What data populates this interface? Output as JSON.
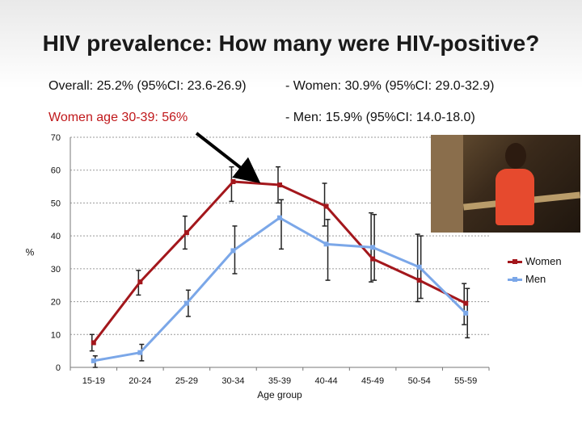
{
  "title": "HIV prevalence: How many were HIV-positive?",
  "stats": {
    "overall": "Overall: 25.2% (95%CI: 23.6-26.9)",
    "women": "-   Women: 30.9% (95%CI: 29.0-32.9)",
    "women_30_39": "Women age 30-39: 56%",
    "men": "-   Men:   15.9% (95%CI: 14.0-18.0)"
  },
  "colors": {
    "women": "#a3171c",
    "men": "#7ba7e8",
    "highlight": "#c0181b"
  },
  "chart_data": {
    "type": "line",
    "xlabel": "Age group",
    "ylabel": "%",
    "ylim": [
      0,
      70
    ],
    "yticks": [
      0,
      10,
      20,
      30,
      40,
      50,
      60,
      70
    ],
    "grid": true,
    "legend_position": "right",
    "categories": [
      "15-19",
      "20-24",
      "25-29",
      "30-34",
      "35-39",
      "40-44",
      "45-49",
      "50-54",
      "55-59"
    ],
    "series": [
      {
        "name": "Women",
        "values": [
          7.5,
          26,
          41,
          56.5,
          55.5,
          49,
          33,
          26.5,
          19.5
        ],
        "lower": [
          5,
          22,
          36,
          50.5,
          50,
          43,
          26,
          20,
          13
        ],
        "upper": [
          10,
          29.5,
          46,
          61,
          61,
          56,
          47,
          40.5,
          25.5
        ]
      },
      {
        "name": "Men",
        "values": [
          2,
          4.5,
          19.5,
          35.5,
          45.5,
          37.5,
          36.5,
          30.5,
          16.5
        ],
        "lower": [
          0,
          2,
          15.5,
          28.5,
          36,
          26.5,
          26.5,
          21,
          9
        ],
        "upper": [
          3.5,
          7,
          23.5,
          43,
          51,
          45,
          46.5,
          40,
          24
        ]
      }
    ],
    "annotation": {
      "type": "arrow",
      "category": "35-39"
    }
  }
}
